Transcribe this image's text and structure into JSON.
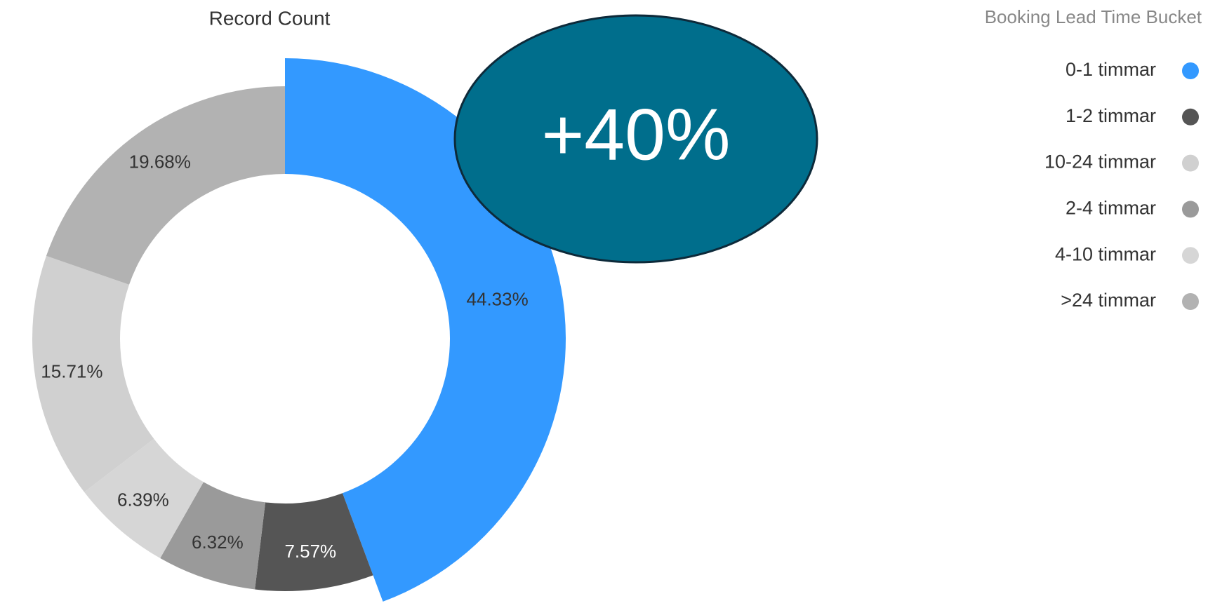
{
  "chart_data": {
    "type": "donut",
    "title": "Record Count",
    "legend_title": "Booking Lead Time Bucket",
    "categories": [
      "0-1 timmar",
      "1-2 timmar",
      "2-4 timmar",
      "4-10 timmar",
      "10-24 timmar",
      ">24 timmar"
    ],
    "values": [
      44.33,
      7.57,
      6.32,
      6.39,
      15.71,
      19.68
    ],
    "value_labels": [
      "44.33%",
      "7.57%",
      "6.32%",
      "6.39%",
      "15.71%",
      "19.68%"
    ],
    "colors": [
      "#3399ff",
      "#555555",
      "#9a9a9a",
      "#d6d6d6",
      "#d0d0d0",
      "#b2b2b2"
    ],
    "highlight_index": 0,
    "legend": "top-right",
    "annotation": "+40%"
  }
}
